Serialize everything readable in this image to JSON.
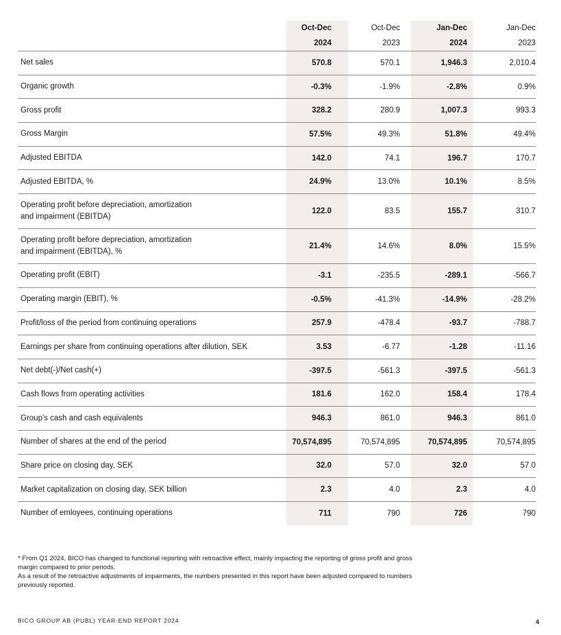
{
  "columns": [
    {
      "period": "Oct-Dec",
      "year": "2024",
      "bold": true
    },
    {
      "period": "Oct-Dec",
      "year": "2023",
      "bold": false
    },
    {
      "period": "Jan-Dec",
      "year": "2024",
      "bold": true
    },
    {
      "period": "Jan-Dec",
      "year": "2023",
      "bold": false
    }
  ],
  "rows": [
    {
      "label": "Net sales",
      "values": [
        "570.8",
        "570.1",
        "1,946.3",
        "2,010.4"
      ]
    },
    {
      "label": "Organic growth",
      "values": [
        "-0.3%",
        "-1.9%",
        "-2.8%",
        "0.9%"
      ]
    },
    {
      "label": "Gross profit",
      "values": [
        "328.2",
        "280.9",
        "1,007.3",
        "993.3"
      ]
    },
    {
      "label": "Gross Margin",
      "values": [
        "57.5%",
        "49.3%",
        "51.8%",
        "49.4%"
      ]
    },
    {
      "label": "Adjusted EBITDA",
      "values": [
        "142.0",
        "74.1",
        "196.7",
        "170.7"
      ]
    },
    {
      "label": "Adjusted EBITDA, %",
      "values": [
        "24.9%",
        "13.0%",
        "10.1%",
        "8.5%"
      ]
    },
    {
      "label": "Operating profit before depreciation, amortization",
      "label2": "and impairment (EBITDA)",
      "values": [
        "122.0",
        "83.5",
        "155.7",
        "310.7"
      ]
    },
    {
      "label": "Operating profit before depreciation, amortization",
      "label2": "and impairment  (EBITDA), %",
      "values": [
        "21.4%",
        "14.6%",
        "8.0%",
        "15.5%"
      ]
    },
    {
      "label": "Operating profit (EBIT)",
      "values": [
        "-3.1",
        "-235.5",
        "-289.1",
        "-566.7"
      ]
    },
    {
      "label": "Operating margin (EBIT), %",
      "values": [
        "-0.5%",
        "-41.3%",
        "-14.9%",
        "-28.2%"
      ]
    },
    {
      "label": "Profit/loss of the period from continuing operations",
      "values": [
        "257.9",
        "-478.4",
        "-93.7",
        "-788.7"
      ]
    },
    {
      "label": "Earnings per share from continuing operations after dilution, SEK",
      "values": [
        "3.53",
        "-6.77",
        "-1.28",
        "-11.16"
      ]
    },
    {
      "label": "Net debt(-)/Net cash(+)",
      "values": [
        "-397.5",
        "-561.3",
        "-397.5",
        "-561.3"
      ]
    },
    {
      "label": "Cash flows from operating activities",
      "values": [
        "181.6",
        "162.0",
        "158.4",
        "178.4"
      ]
    },
    {
      "label": "Group's cash and cash equivalents",
      "values": [
        "946.3",
        "861.0",
        "946.3",
        "861.0"
      ]
    },
    {
      "label": "Number of shares at the end of the period",
      "values": [
        "70,574,895",
        "70,574,895",
        "70,574,895",
        "70,574,895"
      ]
    },
    {
      "label": "Share price on closing day, SEK",
      "values": [
        "32.0",
        "57.0",
        "32.0",
        "57.0"
      ]
    },
    {
      "label": "Market capitalization on closing day, SEK billion",
      "values": [
        "2.3",
        "4.0",
        "2.3",
        "4.0"
      ]
    },
    {
      "label": "Number of emloyees, continuing operations",
      "values": [
        "711",
        "790",
        "726",
        "790"
      ]
    }
  ],
  "footnotes": [
    "* From Q1 2024, BICO has changed to functional reporting with retroactive effect, mainly impacting the reporting of gross profit and gross margin compared to prior periods.",
    "As a result of the retroactive adjustments of impairments, the numbers presented in this report have been adjusted compared to numbers previously reported."
  ],
  "footer": {
    "report_title": "BICO GROUP AB (PUBL) YEAR-END REPORT 2024",
    "page_number": "4"
  },
  "colors": {
    "highlight_column": "#f1eeeb",
    "rule": "#8a8a8a"
  }
}
